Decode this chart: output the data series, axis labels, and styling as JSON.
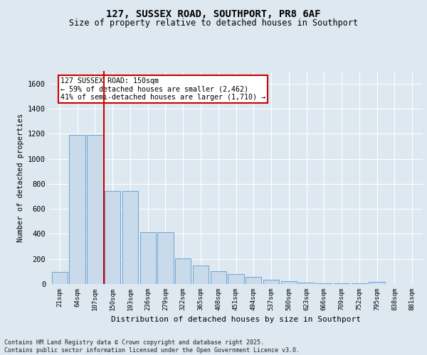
{
  "title1": "127, SUSSEX ROAD, SOUTHPORT, PR8 6AF",
  "title2": "Size of property relative to detached houses in Southport",
  "xlabel": "Distribution of detached houses by size in Southport",
  "ylabel": "Number of detached properties",
  "categories": [
    "21sqm",
    "64sqm",
    "107sqm",
    "150sqm",
    "193sqm",
    "236sqm",
    "279sqm",
    "322sqm",
    "365sqm",
    "408sqm",
    "451sqm",
    "494sqm",
    "537sqm",
    "580sqm",
    "623sqm",
    "666sqm",
    "709sqm",
    "752sqm",
    "795sqm",
    "838sqm",
    "881sqm"
  ],
  "values": [
    95,
    1190,
    1190,
    740,
    740,
    415,
    415,
    205,
    150,
    100,
    78,
    55,
    36,
    22,
    13,
    8,
    4,
    3,
    18,
    2,
    1
  ],
  "bar_color": "#c9daea",
  "bar_edge_color": "#5b9bd5",
  "vline_color": "#cc0000",
  "vline_index": 2.5,
  "annotation_text": "127 SUSSEX ROAD: 150sqm\n← 59% of detached houses are smaller (2,462)\n41% of semi-detached houses are larger (1,710) →",
  "annotation_box_color": "#cc0000",
  "ylim": [
    0,
    1700
  ],
  "yticks": [
    0,
    200,
    400,
    600,
    800,
    1000,
    1200,
    1400,
    1600
  ],
  "footer": "Contains HM Land Registry data © Crown copyright and database right 2025.\nContains public sector information licensed under the Open Government Licence v3.0.",
  "bg_color": "#dde8f0",
  "plot_bg_color": "#dde8f0",
  "grid_color": "#ffffff"
}
